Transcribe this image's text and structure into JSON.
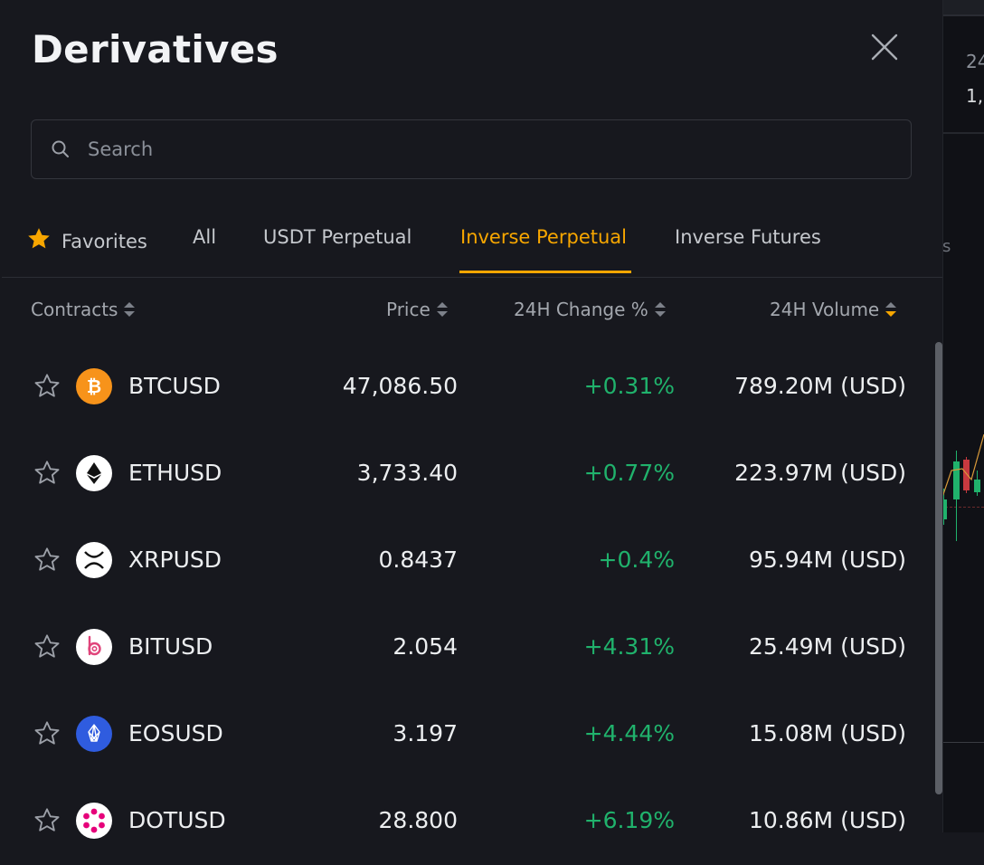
{
  "modal": {
    "title": "Derivatives",
    "search": {
      "placeholder": "Search",
      "value": ""
    },
    "tabs": [
      {
        "label": "Favorites",
        "active": false
      },
      {
        "label": "All",
        "active": false
      },
      {
        "label": "USDT Perpetual",
        "active": false
      },
      {
        "label": "Inverse Perpetual",
        "active": true
      },
      {
        "label": "Inverse Futures",
        "active": false
      }
    ],
    "columns": {
      "contracts": "Contracts",
      "price": "Price",
      "change": "24H Change %",
      "volume": "24H Volume",
      "sorted_by": "24H Volume",
      "sort_direction": "descending"
    },
    "rows": [
      {
        "symbol": "BTCUSD",
        "price": "47,086.50",
        "change": "+0.31%",
        "volume": "789.20M (USD)",
        "coin_icon": "bitcoin-icon"
      },
      {
        "symbol": "ETHUSD",
        "price": "3,733.40",
        "change": "+0.77%",
        "volume": "223.97M (USD)",
        "coin_icon": "ethereum-icon"
      },
      {
        "symbol": "XRPUSD",
        "price": "0.8437",
        "change": "+0.4%",
        "volume": "95.94M (USD)",
        "coin_icon": "xrp-icon"
      },
      {
        "symbol": "BITUSD",
        "price": "2.054",
        "change": "+4.31%",
        "volume": "25.49M (USD)",
        "coin_icon": "bitdao-icon"
      },
      {
        "symbol": "EOSUSD",
        "price": "3.197",
        "change": "+4.44%",
        "volume": "15.08M (USD)",
        "coin_icon": "eos-icon"
      },
      {
        "symbol": "DOTUSD",
        "price": "28.800",
        "change": "+6.19%",
        "volume": "10.86M (USD)",
        "coin_icon": "polkadot-icon"
      }
    ]
  },
  "background": {
    "stat_label": "24",
    "stat_value": "1,",
    "tab_fragment": "s"
  },
  "colors": {
    "accent": "#f7a600",
    "positive": "#20b26c",
    "background": "#17181e",
    "bitcoin": "#f7931a",
    "eos": "#2f5cdf",
    "polkadot": "#e6007a"
  }
}
